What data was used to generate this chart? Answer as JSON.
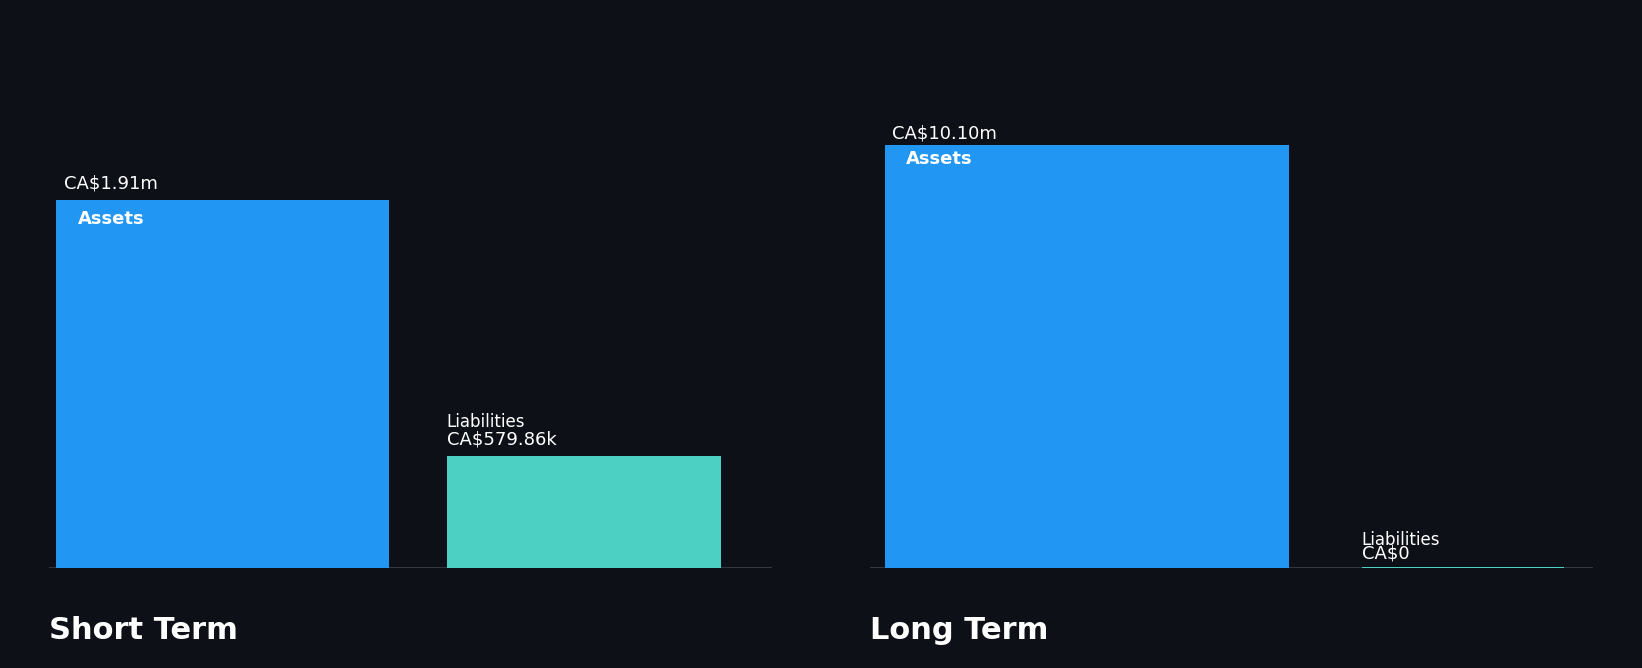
{
  "background_color": "#0d1117",
  "short_term": {
    "assets_value": 1.91,
    "liabilities_value": 0.57986,
    "assets_label": "CA$1.91m",
    "liabilities_label": "CA$579.86k",
    "assets_color": "#2196F3",
    "liabilities_color": "#4DD0C4",
    "y_max": 2.5
  },
  "long_term": {
    "assets_value": 10.1,
    "liabilities_value": 0.0,
    "assets_label": "CA$10.10m",
    "liabilities_label": "CA$0",
    "assets_color": "#2196F3",
    "liabilities_color": "#4DD0C4",
    "y_max": 11.5
  },
  "section_labels": [
    "Short Term",
    "Long Term"
  ],
  "section_label_fontsize": 22,
  "bar_inner_label_fontsize": 13,
  "value_label_fontsize": 13,
  "category_label_fontsize": 12,
  "text_color": "#ffffff",
  "axis_line_color": "#3a3f4b"
}
